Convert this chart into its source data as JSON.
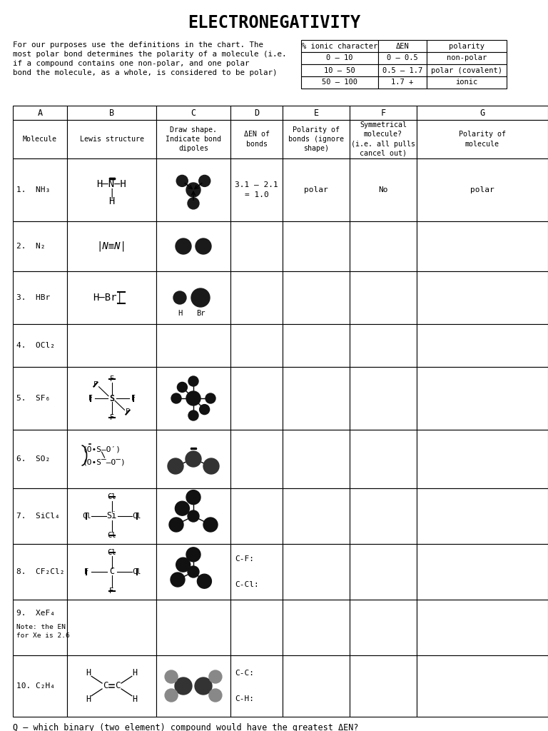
{
  "title": "ELECTRONEGATIVITY",
  "bg_color": "#ffffff",
  "intro_text_lines": [
    "For our purposes use the definitions in the chart. The",
    "most polar bond determines the polarity of a molecule (i.e.",
    "if a compound contains one non-polar, and one polar",
    "bond the molecule, as a whole, is considered to be polar)"
  ],
  "ref_headers": [
    "% ionic character",
    "ΔEN",
    "polarity"
  ],
  "ref_rows": [
    [
      "0 – 10",
      "0 – 0.5",
      "non-polar"
    ],
    [
      "10 – 50",
      "0.5 – 1.7",
      "polar (covalent)"
    ],
    [
      "50 – 100",
      "1.7 +",
      "ionic"
    ]
  ],
  "col_headers": [
    "A",
    "B",
    "C",
    "D",
    "E",
    "F",
    "G"
  ],
  "col_subheaders": [
    "Molecule",
    "Lewis structure",
    "Draw shape.\nIndicate bond\ndipoles",
    "ΔEN of\nbonds",
    "Polarity of\nbonds (ignore\nshape)",
    "Symmetrical\nmolecule?\n(i.e. all pulls\ncancel out)",
    "Polarity of\nmolecule"
  ],
  "row_labels": [
    "1.  NH₃",
    "2.  N₂",
    "3.  HBr",
    "4.  OCl₂",
    "5.  SF₆",
    "6.  SO₂",
    "7.  SiCl₄",
    "8.  CF₂Cl₂",
    "9.  XeF₄",
    "10. C₂H₄"
  ],
  "row9_note": "Note: the EN\nfor Xe is 2.6",
  "row1_den": "3.1 – 2.1\n= 1.0",
  "row1_pol_bonds": "polar",
  "row1_sym": "No",
  "row1_pol_mol": "polar",
  "row8_den": "C-F:\n\nC-Cl:",
  "row10_den": "C-C:\n\nC-H:",
  "hbr_labels": [
    "H",
    "Br"
  ],
  "footer": "Q – which binary (two element) compound would have the greatest ΔEN?"
}
